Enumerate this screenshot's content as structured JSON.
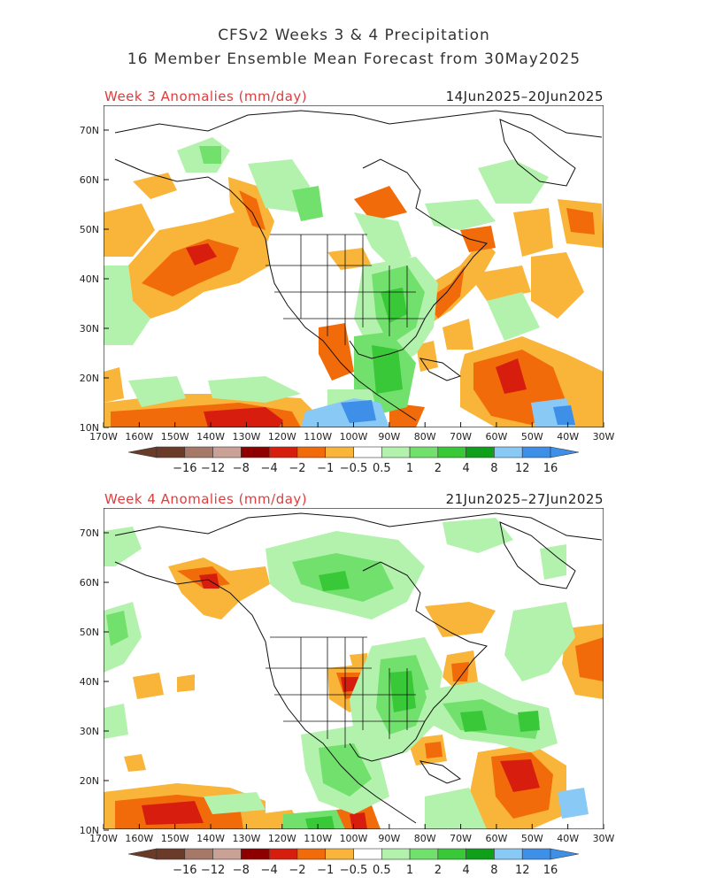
{
  "header": {
    "line1": "CFSv2 Weeks 3 & 4 Precipitation",
    "line2": "16 Member Ensemble Mean Forecast from 30May2025"
  },
  "panels": [
    {
      "label": "Week 3 Anomalies (mm/day)",
      "dates": "14Jun2025–20Jun2025"
    },
    {
      "label": "Week 4 Anomalies (mm/day)",
      "dates": "21Jun2025–27Jun2025"
    }
  ],
  "axes": {
    "lat_labels": [
      "70N",
      "60N",
      "50N",
      "40N",
      "30N",
      "20N",
      "10N"
    ],
    "lon_labels": [
      "170W",
      "160W",
      "150W",
      "140W",
      "130W",
      "120W",
      "110W",
      "100W",
      "90W",
      "80W",
      "70W",
      "60W",
      "50W",
      "40W",
      "30W"
    ]
  },
  "colorbar": {
    "labels": [
      "−16",
      "−12",
      "−8",
      "−4",
      "−2",
      "−1",
      "−0.5",
      "0.5",
      "1",
      "2",
      "4",
      "8",
      "12",
      "16"
    ],
    "colors": [
      "#6b3b2a",
      "#a57868",
      "#c9a196",
      "#8e0000",
      "#d71e0e",
      "#f26b0a",
      "#f9b43a",
      "#ffffff",
      "#b3f2ad",
      "#72e06c",
      "#38c838",
      "#0f9f1a",
      "#89c9f5",
      "#3d8fe8"
    ]
  },
  "palette": {
    "ocean": "#ffffff",
    "dry_light": "#f9b43a",
    "dry_mid": "#f26b0a",
    "dry_strong": "#d71e0e",
    "wet_light": "#b3f2ad",
    "wet_mid": "#72e06c",
    "wet_strong": "#38c838",
    "blue": "#89c9f5",
    "blue_strong": "#3d8fe8"
  }
}
